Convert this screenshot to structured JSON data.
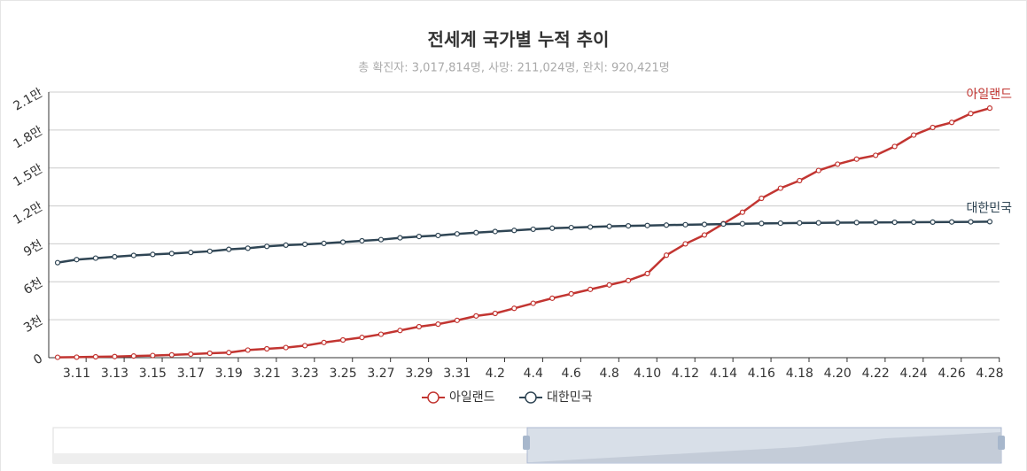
{
  "chart_data": {
    "type": "line",
    "title": "전세계 국가별 누적 추이",
    "subtitle": "총 확진자: 3,017,814명, 사망: 211,024명, 완치: 920,421명",
    "categories": [
      null,
      "3.11",
      null,
      "3.13",
      null,
      "3.15",
      null,
      "3.17",
      null,
      "3.19",
      null,
      "3.21",
      null,
      "3.23",
      null,
      "3.25",
      null,
      "3.27",
      null,
      "3.29",
      null,
      "3.31",
      null,
      "4.2",
      null,
      "4.4",
      null,
      "4.6",
      null,
      "4.8",
      null,
      "4.10",
      null,
      "4.12",
      null,
      "4.14",
      null,
      "4.16",
      null,
      "4.18",
      null,
      "4.20",
      null,
      "4.22",
      null,
      "4.24",
      null,
      "4.26",
      null,
      "4.28"
    ],
    "series": [
      {
        "name": "아일랜드",
        "color": "#c23531",
        "values": [
          30,
          40,
          70,
          90,
          130,
          170,
          220,
          280,
          350,
          400,
          600,
          700,
          800,
          950,
          1200,
          1400,
          1600,
          1850,
          2150,
          2450,
          2650,
          2950,
          3300,
          3500,
          3900,
          4300,
          4700,
          5050,
          5400,
          5750,
          6100,
          6650,
          8100,
          9000,
          9700,
          10600,
          11500,
          12600,
          13400,
          14000,
          14800,
          15300,
          15700,
          16000,
          16700,
          17600,
          18200,
          18600,
          19300,
          19730
        ]
      },
      {
        "name": "대한민국",
        "color": "#2f4554",
        "values": [
          7513,
          7755,
          7869,
          7979,
          8086,
          8162,
          8236,
          8320,
          8413,
          8565,
          8652,
          8799,
          8897,
          8961,
          9037,
          9137,
          9241,
          9332,
          9478,
          9583,
          9661,
          9786,
          9887,
          9976,
          10062,
          10156,
          10237,
          10284,
          10331,
          10384,
          10423,
          10450,
          10480,
          10512,
          10537,
          10564,
          10591,
          10613,
          10635,
          10653,
          10661,
          10674,
          10683,
          10694,
          10702,
          10708,
          10718,
          10728,
          10738,
          10752
        ]
      }
    ],
    "ylim": [
      0,
      21000
    ],
    "yticks": [
      0,
      {
        "value": 3000,
        "label": "3천"
      },
      {
        "value": 6000,
        "label": "6천"
      },
      {
        "value": 9000,
        "label": "9천"
      },
      {
        "value": 12000,
        "label": "1.2만"
      },
      {
        "value": 15000,
        "label": "1.5만"
      },
      {
        "value": 18000,
        "label": "1.8만"
      },
      {
        "value": 21000,
        "label": "2.1만"
      }
    ],
    "grid": true
  }
}
